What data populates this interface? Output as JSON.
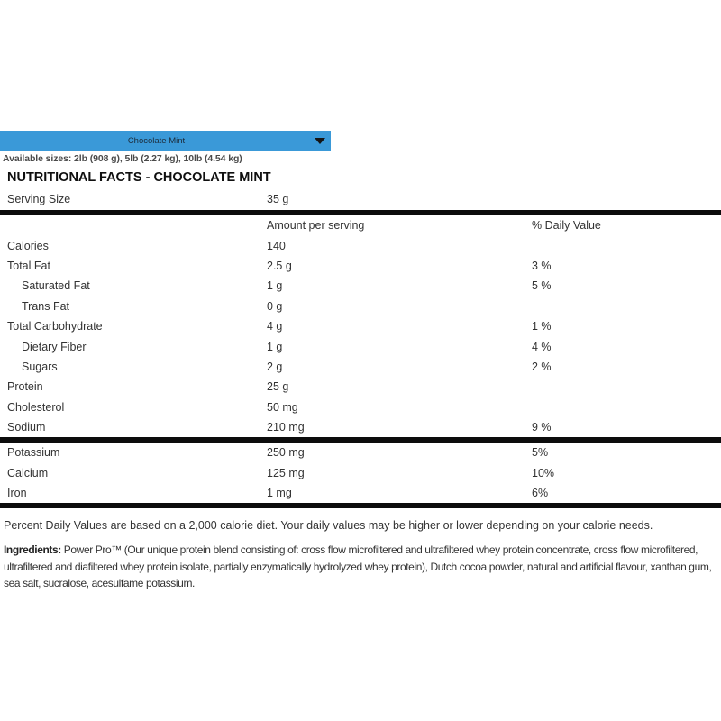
{
  "flavor_dropdown": {
    "selected": "Chocolate Mint"
  },
  "available_sizes": "Available sizes: 2lb (908 g), 5lb (2.27 kg), 10lb (4.54 kg)",
  "heading": "NUTRITIONAL FACTS - CHOCOLATE MINT",
  "serving": {
    "label": "Serving Size",
    "value": "35 g"
  },
  "columns": {
    "amount": "Amount per serving",
    "daily": "% Daily Value"
  },
  "rows": [
    {
      "label": "Calories",
      "amount": "140",
      "daily": ""
    },
    {
      "label": "Total Fat",
      "amount": "2.5 g",
      "daily": "3 %"
    },
    {
      "label": "Saturated Fat",
      "amount": "1 g",
      "daily": "5 %"
    },
    {
      "label": "Trans Fat",
      "amount": "0 g",
      "daily": ""
    },
    {
      "label": "Total Carbohydrate",
      "amount": "4 g",
      "daily": "1 %"
    },
    {
      "label": "Dietary Fiber",
      "amount": "1 g",
      "daily": "4 %"
    },
    {
      "label": "Sugars",
      "amount": "2 g",
      "daily": "2 %"
    },
    {
      "label": "Protein",
      "amount": "25 g",
      "daily": ""
    },
    {
      "label": "Cholesterol",
      "amount": "50 mg",
      "daily": ""
    },
    {
      "label": "Sodium",
      "amount": "210 mg",
      "daily": "9 %"
    }
  ],
  "minerals": [
    {
      "label": "Potassium",
      "amount": "250 mg",
      "daily": "5%"
    },
    {
      "label": "Calcium",
      "amount": "125 mg",
      "daily": "10%"
    },
    {
      "label": "Iron",
      "amount": "1 mg",
      "daily": "6%"
    }
  ],
  "footnote": "Percent Daily Values are based on a 2,000 calorie diet. Your daily values may be higher or lower depending on your calorie needs.",
  "ingredients_label": "Ingredients:",
  "ingredients_text": " Power Pro™ (Our unique protein blend consisting of: cross flow microfiltered and ultrafiltered whey protein concentrate, cross flow microfiltered, ultrafiltered and diafiltered whey protein isolate, partially enzymatically hydrolyzed whey protein), Dutch cocoa powder, natural and artificial flavour, xanthan gum, sea salt, sucralose, acesulfame potassium."
}
